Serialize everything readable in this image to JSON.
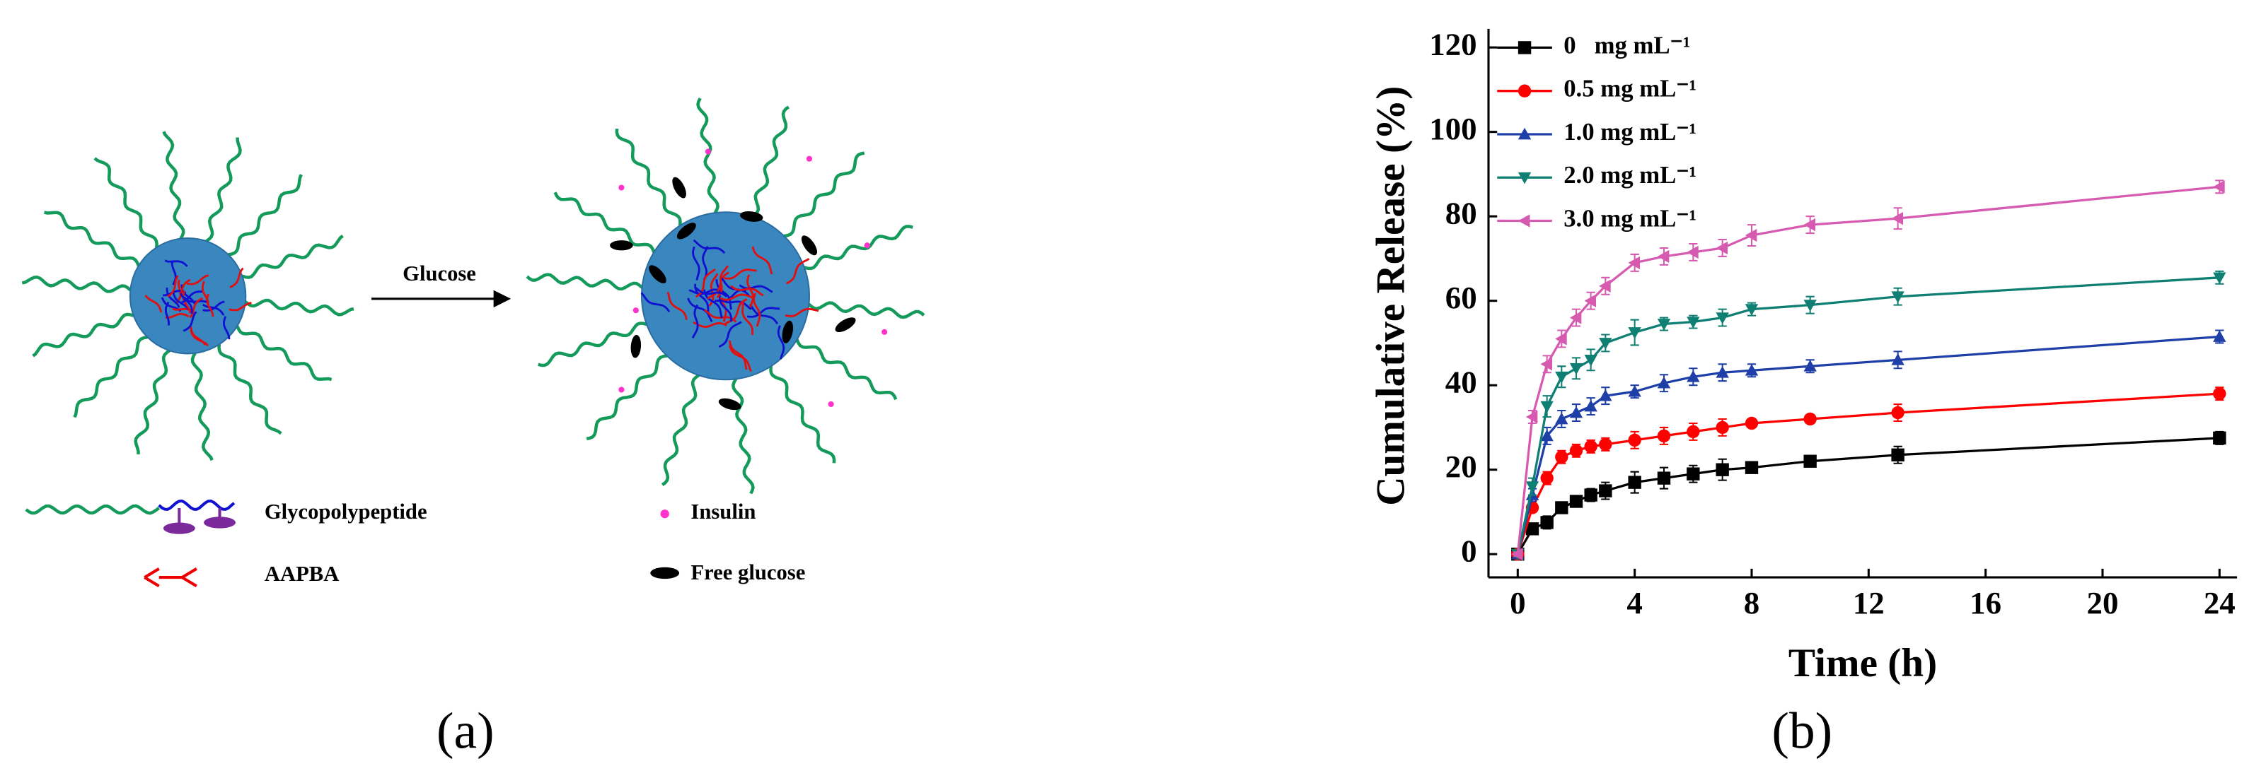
{
  "diagram": {
    "arrow_label": "Glucose",
    "legend": [
      "Glycopolypeptide",
      "AAPBA",
      "Insulin",
      "Free glucose"
    ]
  },
  "panel_labels": [
    "(a)",
    "(b)"
  ],
  "chart_data": {
    "type": "line",
    "x_label": "Time (h)",
    "y_label": "Cumulative Release (%)",
    "x": [
      0,
      0.5,
      1,
      1.5,
      2,
      2.5,
      3,
      4,
      5,
      6,
      7,
      8,
      10,
      13,
      24
    ],
    "xlim": [
      -1,
      24.6
    ],
    "ylim": [
      -5.5,
      124.4
    ],
    "xticks": [
      0,
      4,
      8,
      12,
      16,
      20,
      24
    ],
    "yticks": [
      0,
      20,
      40,
      60,
      80,
      100,
      120
    ],
    "legend": "upper left",
    "series": [
      {
        "name": "0   mg mL⁻¹",
        "color": "#000000",
        "marker": "square",
        "values": [
          0,
          6,
          7.5,
          11,
          12.5,
          14,
          15,
          17,
          18,
          19,
          20,
          20.5,
          22,
          23.5,
          27.5
        ],
        "errors": [
          0.5,
          1,
          1.5,
          1,
          1,
          1.5,
          2,
          2.5,
          2.5,
          2,
          2.5,
          1,
          1,
          2,
          1.5
        ]
      },
      {
        "name": "0.5 mg mL⁻¹",
        "color": "#ff0000",
        "marker": "circle",
        "values": [
          0,
          11,
          18,
          23,
          24.5,
          25.5,
          26,
          27,
          28,
          29,
          30,
          31,
          32,
          33.5,
          38
        ],
        "errors": [
          0.5,
          1,
          1.5,
          1.5,
          1.5,
          1.5,
          1.5,
          2,
          2,
          2,
          2,
          1,
          1,
          2,
          1.5
        ]
      },
      {
        "name": "1.0 mg mL⁻¹",
        "color": "#1f3fa8",
        "marker": "triangle-up",
        "values": [
          0,
          14,
          28,
          32,
          33.5,
          35,
          37.5,
          38.5,
          40.5,
          42,
          43,
          43.5,
          44.5,
          46,
          51.5
        ],
        "errors": [
          0.5,
          1.5,
          2,
          2,
          2,
          2,
          2,
          1.5,
          2,
          2,
          2,
          1.5,
          1.5,
          2,
          1.5
        ]
      },
      {
        "name": "2.0 mg mL⁻¹",
        "color": "#0e7f72",
        "marker": "triangle-down",
        "values": [
          0,
          16,
          35,
          42,
          44,
          46,
          50,
          52.5,
          54.5,
          55,
          56,
          58,
          59,
          61,
          65.5
        ],
        "errors": [
          0.5,
          2,
          2.5,
          2.5,
          2.5,
          2.5,
          2,
          3,
          1.5,
          1.5,
          2,
          1.5,
          2,
          2,
          1.5
        ]
      },
      {
        "name": "3.0 mg mL⁻¹",
        "color": "#d65bb0",
        "marker": "triangle-left",
        "values": [
          0,
          32.5,
          45,
          51,
          56,
          60,
          63.5,
          69,
          70.5,
          71.5,
          72.5,
          75.5,
          78,
          79.5,
          87
        ],
        "errors": [
          0.5,
          1.5,
          2,
          2,
          2,
          2,
          2,
          2,
          2,
          2,
          2,
          2.5,
          2,
          2.5,
          1.5
        ]
      }
    ]
  }
}
